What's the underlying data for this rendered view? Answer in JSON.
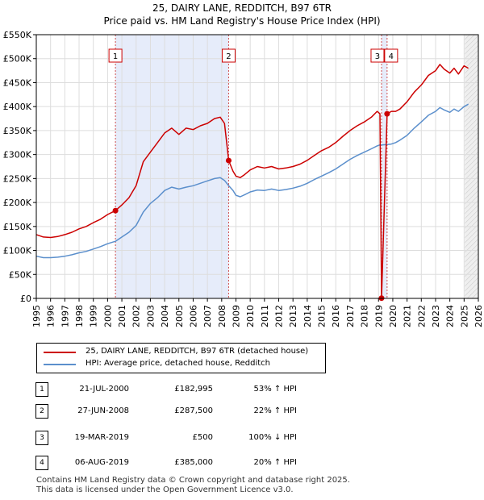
{
  "chart_data": {
    "type": "line",
    "title": "25, DAIRY LANE, REDDITCH, B97 6TR",
    "subtitle": "Price paid vs. HM Land Registry's House Price Index (HPI)",
    "x_ticks": [
      "1995",
      "1996",
      "1997",
      "1998",
      "1999",
      "2000",
      "2001",
      "2002",
      "2003",
      "2004",
      "2005",
      "2006",
      "2007",
      "2008",
      "2009",
      "2010",
      "2011",
      "2012",
      "2013",
      "2014",
      "2015",
      "2016",
      "2017",
      "2018",
      "2019",
      "2020",
      "2021",
      "2022",
      "2023",
      "2024",
      "2025",
      "2026"
    ],
    "y_ticks": [
      "£0",
      "£50K",
      "£100K",
      "£150K",
      "£200K",
      "£250K",
      "£300K",
      "£350K",
      "£400K",
      "£450K",
      "£500K",
      "£550K"
    ],
    "xlim": [
      1995,
      2026
    ],
    "ylim": [
      0,
      550000
    ],
    "shaded_ranges": [
      [
        2000.55,
        2008.49
      ],
      [
        2019.21,
        2019.6
      ]
    ],
    "series": [
      {
        "name": "25, DAIRY LANE, REDDITCH, B97 6TR (detached house)",
        "color": "#cc0000",
        "points": [
          [
            1995.0,
            133000
          ],
          [
            1995.5,
            128000
          ],
          [
            1996.0,
            127000
          ],
          [
            1996.5,
            129000
          ],
          [
            1997.0,
            133000
          ],
          [
            1997.5,
            138000
          ],
          [
            1998.0,
            145000
          ],
          [
            1998.5,
            150000
          ],
          [
            1999.0,
            158000
          ],
          [
            1999.5,
            165000
          ],
          [
            2000.0,
            175000
          ],
          [
            2000.55,
            182995
          ],
          [
            2001.0,
            195000
          ],
          [
            2001.5,
            210000
          ],
          [
            2002.0,
            235000
          ],
          [
            2002.5,
            285000
          ],
          [
            2003.0,
            305000
          ],
          [
            2003.5,
            325000
          ],
          [
            2004.0,
            345000
          ],
          [
            2004.5,
            355000
          ],
          [
            2005.0,
            342000
          ],
          [
            2005.5,
            355000
          ],
          [
            2006.0,
            352000
          ],
          [
            2006.5,
            360000
          ],
          [
            2007.0,
            365000
          ],
          [
            2007.5,
            375000
          ],
          [
            2007.9,
            378000
          ],
          [
            2008.2,
            365000
          ],
          [
            2008.49,
            287500
          ],
          [
            2008.8,
            265000
          ],
          [
            2009.0,
            255000
          ],
          [
            2009.3,
            252000
          ],
          [
            2009.6,
            258000
          ],
          [
            2010.0,
            268000
          ],
          [
            2010.5,
            275000
          ],
          [
            2011.0,
            272000
          ],
          [
            2011.5,
            275000
          ],
          [
            2012.0,
            270000
          ],
          [
            2012.5,
            272000
          ],
          [
            2013.0,
            275000
          ],
          [
            2013.5,
            280000
          ],
          [
            2014.0,
            288000
          ],
          [
            2014.5,
            298000
          ],
          [
            2015.0,
            308000
          ],
          [
            2015.5,
            315000
          ],
          [
            2016.0,
            325000
          ],
          [
            2016.5,
            338000
          ],
          [
            2017.0,
            350000
          ],
          [
            2017.5,
            360000
          ],
          [
            2018.0,
            368000
          ],
          [
            2018.5,
            378000
          ],
          [
            2018.9,
            390000
          ],
          [
            2019.1,
            385000
          ],
          [
            2019.21,
            500
          ],
          [
            2019.6,
            385000
          ],
          [
            2019.9,
            390000
          ],
          [
            2020.2,
            390000
          ],
          [
            2020.5,
            395000
          ],
          [
            2021.0,
            410000
          ],
          [
            2021.5,
            430000
          ],
          [
            2022.0,
            445000
          ],
          [
            2022.5,
            465000
          ],
          [
            2023.0,
            475000
          ],
          [
            2023.3,
            488000
          ],
          [
            2023.6,
            478000
          ],
          [
            2024.0,
            470000
          ],
          [
            2024.3,
            480000
          ],
          [
            2024.6,
            468000
          ],
          [
            2025.0,
            485000
          ],
          [
            2025.3,
            480000
          ]
        ]
      },
      {
        "name": "HPI: Average price, detached house, Redditch",
        "color": "#5b8fcc",
        "points": [
          [
            1995.0,
            88000
          ],
          [
            1995.5,
            85000
          ],
          [
            1996.0,
            85000
          ],
          [
            1996.5,
            86000
          ],
          [
            1997.0,
            88000
          ],
          [
            1997.5,
            91000
          ],
          [
            1998.0,
            95000
          ],
          [
            1998.5,
            98000
          ],
          [
            1999.0,
            103000
          ],
          [
            1999.5,
            108000
          ],
          [
            2000.0,
            114000
          ],
          [
            2000.55,
            119000
          ],
          [
            2001.0,
            128000
          ],
          [
            2001.5,
            138000
          ],
          [
            2002.0,
            152000
          ],
          [
            2002.5,
            180000
          ],
          [
            2003.0,
            198000
          ],
          [
            2003.5,
            210000
          ],
          [
            2004.0,
            225000
          ],
          [
            2004.5,
            232000
          ],
          [
            2005.0,
            228000
          ],
          [
            2005.5,
            232000
          ],
          [
            2006.0,
            235000
          ],
          [
            2006.5,
            240000
          ],
          [
            2007.0,
            245000
          ],
          [
            2007.5,
            250000
          ],
          [
            2007.9,
            252000
          ],
          [
            2008.2,
            246000
          ],
          [
            2008.49,
            235000
          ],
          [
            2008.8,
            225000
          ],
          [
            2009.0,
            215000
          ],
          [
            2009.3,
            212000
          ],
          [
            2009.6,
            216000
          ],
          [
            2010.0,
            222000
          ],
          [
            2010.5,
            226000
          ],
          [
            2011.0,
            225000
          ],
          [
            2011.5,
            228000
          ],
          [
            2012.0,
            225000
          ],
          [
            2012.5,
            227000
          ],
          [
            2013.0,
            230000
          ],
          [
            2013.5,
            234000
          ],
          [
            2014.0,
            240000
          ],
          [
            2014.5,
            248000
          ],
          [
            2015.0,
            255000
          ],
          [
            2015.5,
            262000
          ],
          [
            2016.0,
            270000
          ],
          [
            2016.5,
            280000
          ],
          [
            2017.0,
            290000
          ],
          [
            2017.5,
            298000
          ],
          [
            2018.0,
            305000
          ],
          [
            2018.5,
            312000
          ],
          [
            2018.9,
            318000
          ],
          [
            2019.1,
            320000
          ],
          [
            2019.21,
            320000
          ],
          [
            2019.6,
            321000
          ],
          [
            2019.9,
            322000
          ],
          [
            2020.2,
            325000
          ],
          [
            2020.5,
            330000
          ],
          [
            2021.0,
            340000
          ],
          [
            2021.5,
            355000
          ],
          [
            2022.0,
            368000
          ],
          [
            2022.5,
            382000
          ],
          [
            2023.0,
            390000
          ],
          [
            2023.3,
            398000
          ],
          [
            2023.6,
            393000
          ],
          [
            2024.0,
            388000
          ],
          [
            2024.3,
            395000
          ],
          [
            2024.6,
            390000
          ],
          [
            2025.0,
            400000
          ],
          [
            2025.3,
            405000
          ]
        ]
      }
    ],
    "markers": [
      {
        "label": "1",
        "x": 2000.55,
        "y": 182995
      },
      {
        "label": "2",
        "x": 2008.49,
        "y": 287500
      },
      {
        "label": "3",
        "x": 2019.21,
        "y": 500
      },
      {
        "label": "4",
        "x": 2019.6,
        "y": 385000
      }
    ]
  },
  "sales": [
    {
      "num": "1",
      "date": "21-JUL-2000",
      "price": "£182,995",
      "pct": "53% ↑ HPI"
    },
    {
      "num": "2",
      "date": "27-JUN-2008",
      "price": "£287,500",
      "pct": "22% ↑ HPI"
    },
    {
      "num": "3",
      "date": "19-MAR-2019",
      "price": "£500",
      "pct": "100% ↓ HPI"
    },
    {
      "num": "4",
      "date": "06-AUG-2019",
      "price": "£385,000",
      "pct": "20% ↑ HPI"
    }
  ],
  "footer": {
    "line1": "Contains HM Land Registry data © Crown copyright and database right 2025.",
    "line2": "This data is licensed under the Open Government Licence v3.0."
  }
}
